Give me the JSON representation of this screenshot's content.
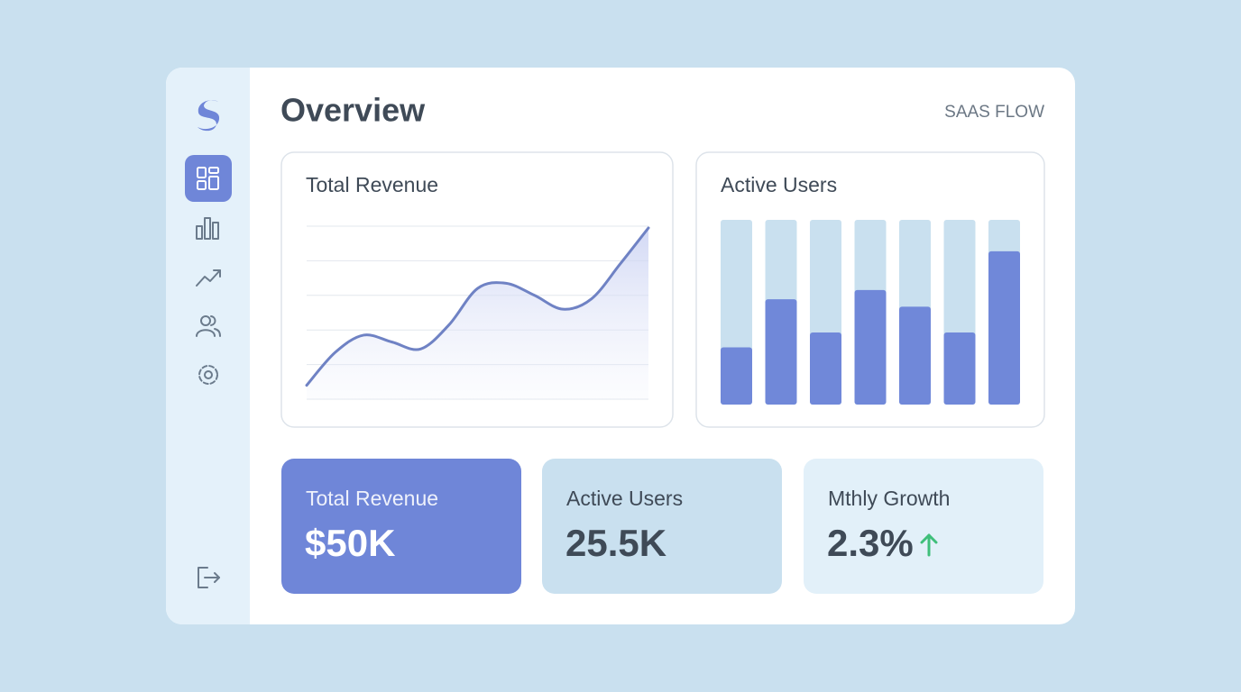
{
  "header": {
    "title": "Overview",
    "brand": "SAAS FLOW"
  },
  "revenue_chart": {
    "type": "line",
    "title": "Total Revenue",
    "color": "#6f82c4",
    "values": [
      8,
      27,
      37,
      33,
      29,
      43,
      64,
      67,
      60,
      52,
      58,
      78,
      99
    ],
    "ylim": [
      0,
      100
    ]
  },
  "users_chart": {
    "type": "bar",
    "title": "Active Users",
    "color": "#7088d9",
    "values": [
      31,
      57,
      39,
      62,
      53,
      39,
      83
    ],
    "ylim": [
      0,
      100
    ]
  },
  "stats": [
    {
      "label": "Total Revenue",
      "value": "$50K"
    },
    {
      "label": "Active Users",
      "value": "25.5K"
    },
    {
      "label": "Mthly Growth",
      "value": "2.3%"
    }
  ]
}
